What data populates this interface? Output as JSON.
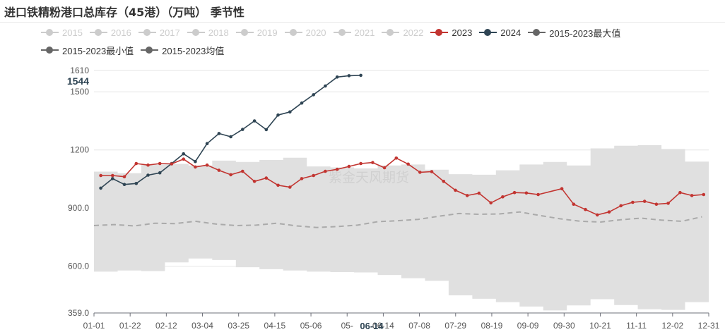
{
  "title": "进口铁精粉港口总库存（45港）（万吨） 季节性",
  "watermark": "紫金天风期货",
  "legend": [
    {
      "name": "2015",
      "color": "#cccccc",
      "active": false
    },
    {
      "name": "2016",
      "color": "#cccccc",
      "active": false
    },
    {
      "name": "2017",
      "color": "#cccccc",
      "active": false
    },
    {
      "name": "2018",
      "color": "#cccccc",
      "active": false
    },
    {
      "name": "2019",
      "color": "#cccccc",
      "active": false
    },
    {
      "name": "2020",
      "color": "#cccccc",
      "active": false
    },
    {
      "name": "2021",
      "color": "#cccccc",
      "active": false
    },
    {
      "name": "2022",
      "color": "#cccccc",
      "active": false
    },
    {
      "name": "2023",
      "color": "#c23531",
      "active": true
    },
    {
      "name": "2024",
      "color": "#2f4554",
      "active": true
    },
    {
      "name": "2015-2023最大值",
      "color": "#666666",
      "active": true
    },
    {
      "name": "2015-2023最小值",
      "color": "#666666",
      "active": true
    },
    {
      "name": "2015-2023均值",
      "color": "#666666",
      "active": true
    }
  ],
  "hover": {
    "x_label": "06-14",
    "y_label": "1544"
  },
  "chart_data": {
    "type": "line",
    "title": "进口铁精粉港口总库存（45港）（万吨） 季节性",
    "x_ticks": [
      "01-01",
      "01-22",
      "02-12",
      "03-04",
      "03-25",
      "04-15",
      "05-06",
      "05-",
      "06-14",
      "07-08",
      "07-29",
      "08-19",
      "09-09",
      "09-30",
      "10-21",
      "11-11",
      "12-02",
      "12-31"
    ],
    "y_ticks": [
      "359.0",
      "600.0",
      "900.0",
      "1200",
      "1500",
      "1610"
    ],
    "ylim": [
      359,
      1610
    ],
    "xlim": [
      1,
      365
    ],
    "series": [
      {
        "name": "2024",
        "color": "#2f4554",
        "x": [
          5,
          12,
          19,
          26,
          33,
          40,
          47,
          54,
          61,
          68,
          75,
          82,
          89,
          96,
          103,
          110,
          117,
          124,
          131,
          138,
          145,
          152,
          159
        ],
        "y": [
          1003,
          1052,
          1022,
          1027,
          1070,
          1082,
          1130,
          1180,
          1140,
          1233,
          1285,
          1268,
          1306,
          1350,
          1305,
          1380,
          1396,
          1442,
          1485,
          1530,
          1576,
          1583,
          1585
        ]
      },
      {
        "name": "2023",
        "color": "#c23531",
        "x": [
          5,
          12,
          19,
          26,
          33,
          40,
          47,
          54,
          61,
          68,
          75,
          82,
          89,
          96,
          103,
          110,
          117,
          124,
          131,
          138,
          145,
          152,
          159,
          166,
          173,
          180,
          187,
          194,
          201,
          208,
          215,
          222,
          229,
          236,
          243,
          250,
          257,
          264,
          278,
          285,
          292,
          299,
          306,
          313,
          320,
          327,
          334,
          341,
          348,
          355,
          362
        ],
        "y": [
          1068,
          1068,
          1062,
          1130,
          1122,
          1130,
          1128,
          1153,
          1112,
          1122,
          1095,
          1072,
          1090,
          1038,
          1055,
          1018,
          1008,
          1052,
          1068,
          1090,
          1100,
          1115,
          1130,
          1135,
          1108,
          1158,
          1127,
          1085,
          1088,
          1038,
          992,
          965,
          977,
          927,
          958,
          980,
          978,
          970,
          1000,
          920,
          893,
          865,
          880,
          912,
          930,
          935,
          920,
          925,
          980,
          965,
          970
        ]
      },
      {
        "name": "2015-2023均值",
        "color": "#aaaaaa",
        "x": [
          1,
          13,
          25,
          37,
          49,
          61,
          73,
          85,
          97,
          109,
          121,
          133,
          145,
          157,
          169,
          181,
          193,
          205,
          217,
          229,
          241,
          253,
          265,
          277,
          289,
          301,
          313,
          325,
          337,
          349,
          361
        ],
        "y": [
          810,
          815,
          808,
          822,
          820,
          832,
          818,
          810,
          812,
          822,
          808,
          800,
          805,
          812,
          830,
          835,
          842,
          858,
          872,
          868,
          870,
          880,
          862,
          845,
          832,
          828,
          840,
          848,
          838,
          832,
          855
        ]
      }
    ],
    "band": {
      "name": "2015-2023最大值 / 2015-2023最小值",
      "color": "#e0e0e0",
      "x": [
        1,
        15,
        29,
        43,
        57,
        71,
        85,
        99,
        113,
        127,
        141,
        155,
        169,
        183,
        197,
        211,
        225,
        239,
        253,
        267,
        281,
        295,
        309,
        323,
        337,
        351,
        365
      ],
      "max": [
        1088,
        1080,
        1125,
        1128,
        1120,
        1145,
        1138,
        1148,
        1160,
        1115,
        1110,
        1105,
        1120,
        1125,
        1098,
        1075,
        1072,
        1095,
        1125,
        1138,
        1120,
        1208,
        1222,
        1225,
        1205,
        1140,
        1150
      ],
      "min": [
        572,
        578,
        575,
        620,
        640,
        632,
        595,
        585,
        578,
        572,
        570,
        568,
        555,
        538,
        525,
        450,
        432,
        415,
        392,
        372,
        398,
        430,
        400,
        378,
        375,
        415,
        582
      ]
    }
  }
}
